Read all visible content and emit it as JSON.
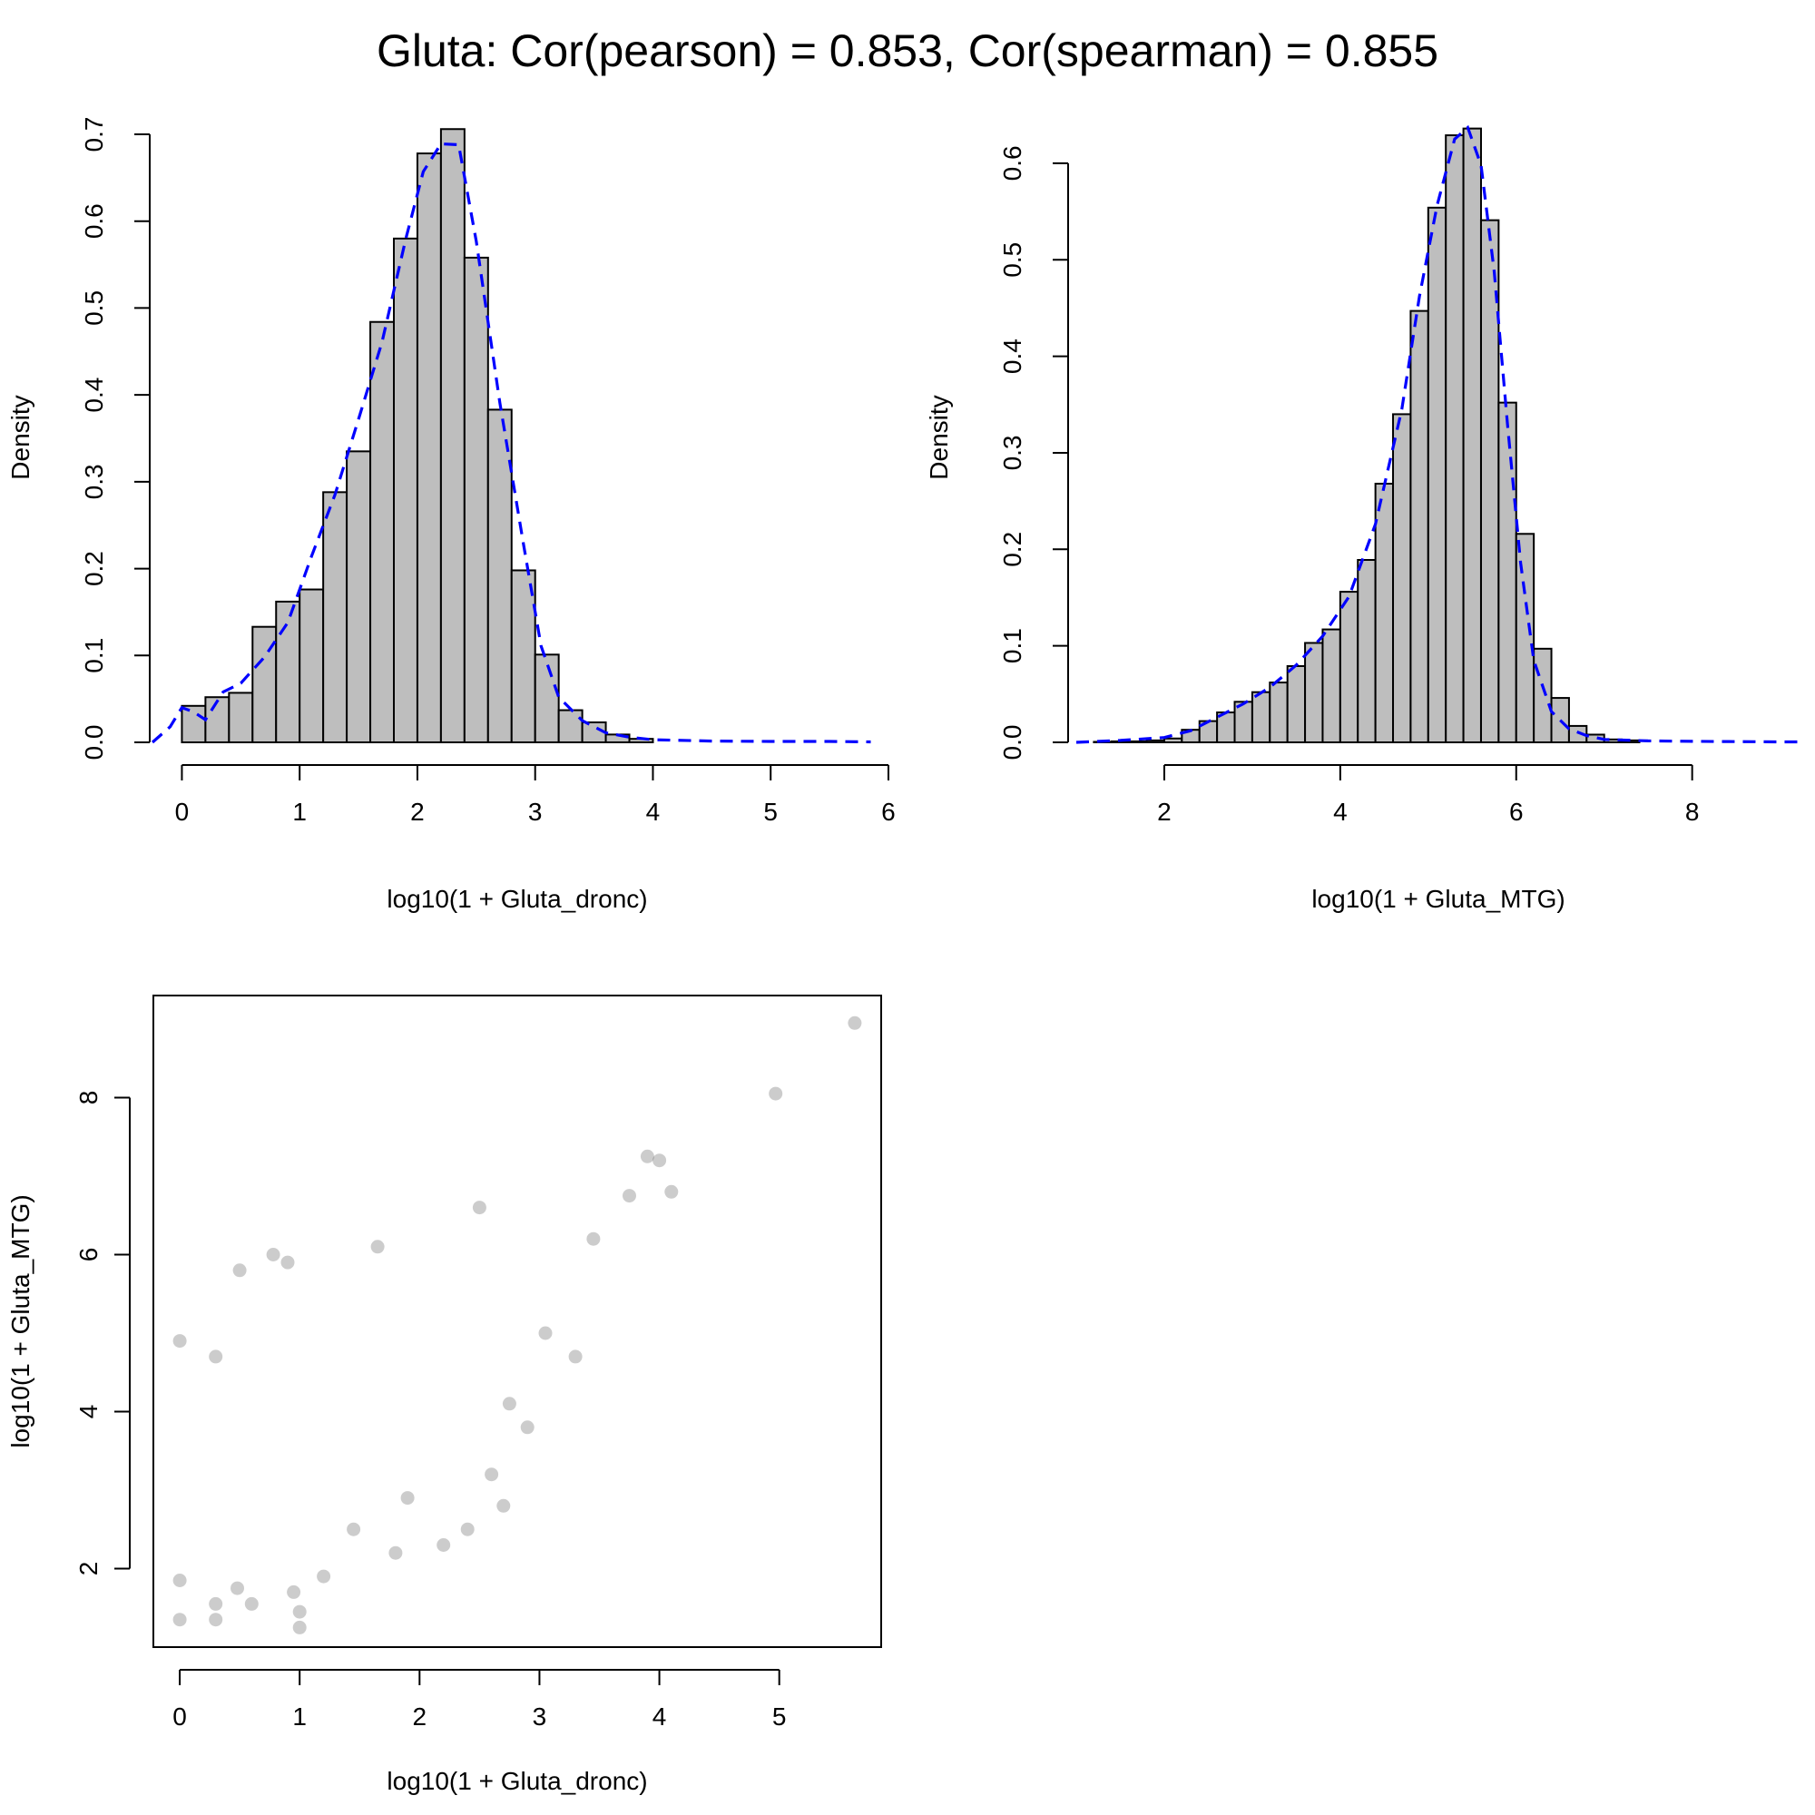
{
  "figure": {
    "title": "Gluta: Cor(pearson) = 0.853, Cor(spearman) = 0.855"
  },
  "chart_data": [
    {
      "type": "bar",
      "panel": "histogram-dronc",
      "xlabel": "log10(1 + Gluta_dronc)",
      "ylabel": "Density",
      "xlim": [
        -0.25,
        5.9
      ],
      "ylim": [
        0,
        0.7
      ],
      "x_ticks": [
        0,
        1,
        2,
        3,
        4,
        5,
        6
      ],
      "y_ticks": [
        0.0,
        0.1,
        0.2,
        0.3,
        0.4,
        0.5,
        0.6,
        0.7
      ],
      "bin_width": 0.2,
      "bins_start": [
        0.0,
        0.2,
        0.4,
        0.6,
        0.8,
        1.0,
        1.2,
        1.4,
        1.6,
        1.8,
        2.0,
        2.2,
        2.4,
        2.6,
        2.8,
        3.0,
        3.2,
        3.4,
        3.6,
        3.8
      ],
      "values": [
        0.042,
        0.052,
        0.057,
        0.133,
        0.162,
        0.176,
        0.288,
        0.335,
        0.484,
        0.58,
        0.678,
        0.706,
        0.558,
        0.383,
        0.198,
        0.101,
        0.037,
        0.023,
        0.009,
        0.004
      ],
      "density_curve": {
        "name": "density",
        "color": "#0000ff",
        "style": "dashed",
        "x": [
          -0.25,
          -0.1,
          0.0,
          0.1,
          0.2,
          0.35,
          0.5,
          0.7,
          0.9,
          1.1,
          1.3,
          1.5,
          1.7,
          1.9,
          2.05,
          2.2,
          2.35,
          2.5,
          2.7,
          2.9,
          3.05,
          3.2,
          3.4,
          3.6,
          3.8,
          4.0,
          4.5,
          5.0,
          5.5,
          5.85
        ],
        "y": [
          0.0,
          0.018,
          0.04,
          0.035,
          0.026,
          0.058,
          0.068,
          0.098,
          0.138,
          0.214,
          0.285,
          0.372,
          0.461,
          0.579,
          0.657,
          0.689,
          0.688,
          0.577,
          0.391,
          0.229,
          0.111,
          0.052,
          0.025,
          0.011,
          0.006,
          0.003,
          0.0015,
          0.001,
          0.001,
          0.0005
        ]
      }
    },
    {
      "type": "bar",
      "panel": "histogram-mtg",
      "xlabel": "log10(1 + Gluta_MTG)",
      "ylabel": "Density",
      "xlim": [
        1.0,
        9.2
      ],
      "ylim": [
        0,
        0.63
      ],
      "x_ticks": [
        2,
        4,
        6,
        8
      ],
      "y_ticks": [
        0.0,
        0.1,
        0.2,
        0.3,
        0.4,
        0.5,
        0.6
      ],
      "bin_width": 0.2,
      "bins_start": [
        1.2,
        1.4,
        1.6,
        1.8,
        2.0,
        2.2,
        2.4,
        2.6,
        2.8,
        3.0,
        3.2,
        3.4,
        3.6,
        3.8,
        4.0,
        4.2,
        4.4,
        4.6,
        4.8,
        5.0,
        5.2,
        5.4,
        5.6,
        5.8,
        6.0,
        6.2,
        6.4,
        6.6,
        6.8,
        7.0,
        7.2
      ],
      "values": [
        0.0005,
        0.001,
        0.001,
        0.002,
        0.004,
        0.013,
        0.022,
        0.031,
        0.042,
        0.052,
        0.062,
        0.079,
        0.103,
        0.117,
        0.156,
        0.189,
        0.268,
        0.34,
        0.447,
        0.554,
        0.629,
        0.636,
        0.541,
        0.352,
        0.216,
        0.097,
        0.046,
        0.017,
        0.008,
        0.003,
        0.002
      ],
      "density_curve": {
        "name": "density",
        "color": "#0000ff",
        "style": "dashed",
        "x": [
          1.0,
          1.5,
          2.0,
          2.3,
          2.6,
          2.9,
          3.2,
          3.5,
          3.8,
          4.1,
          4.4,
          4.7,
          4.9,
          5.1,
          5.3,
          5.45,
          5.6,
          5.75,
          5.9,
          6.05,
          6.2,
          6.4,
          6.6,
          6.8,
          7.0,
          7.5,
          8.0,
          9.0,
          9.2
        ],
        "y": [
          0.0,
          0.002,
          0.005,
          0.012,
          0.026,
          0.04,
          0.057,
          0.08,
          0.11,
          0.151,
          0.226,
          0.345,
          0.462,
          0.556,
          0.625,
          0.637,
          0.598,
          0.488,
          0.33,
          0.186,
          0.085,
          0.032,
          0.014,
          0.007,
          0.003,
          0.0015,
          0.001,
          0.0005,
          0.0005
        ]
      }
    },
    {
      "type": "scatter",
      "panel": "scatter",
      "xlabel": "log10(1 + Gluta_dronc)",
      "ylabel": "log10(1 + Gluta_MTG)",
      "xlim": [
        -0.22,
        5.85
      ],
      "ylim": [
        1.0,
        9.3
      ],
      "x_ticks": [
        0,
        1,
        2,
        3,
        4,
        5
      ],
      "y_ticks": [
        2,
        4,
        6,
        8
      ],
      "point_color": "rgba(0,0,0,0.2)",
      "points": [
        [
          0.0,
          4.9
        ],
        [
          0.0,
          1.35
        ],
        [
          0.0,
          1.85
        ],
        [
          0.3,
          1.35
        ],
        [
          0.3,
          1.55
        ],
        [
          0.3,
          4.7
        ],
        [
          0.48,
          1.75
        ],
        [
          0.6,
          1.55
        ],
        [
          0.95,
          1.7
        ],
        [
          1.0,
          1.25
        ],
        [
          1.0,
          1.45
        ],
        [
          0.5,
          5.8
        ],
        [
          0.78,
          6.0
        ],
        [
          0.9,
          5.9
        ],
        [
          1.2,
          1.9
        ],
        [
          1.65,
          6.1
        ],
        [
          2.5,
          6.6
        ],
        [
          4.97,
          8.05
        ],
        [
          5.63,
          8.95
        ],
        [
          3.9,
          7.25
        ],
        [
          4.0,
          7.2
        ],
        [
          3.3,
          4.7
        ],
        [
          2.9,
          3.8
        ],
        [
          2.4,
          2.5
        ],
        [
          2.6,
          3.2
        ],
        [
          2.2,
          2.3
        ],
        [
          1.8,
          2.2
        ],
        [
          1.9,
          2.9
        ],
        [
          3.05,
          5.0
        ],
        [
          2.75,
          4.1
        ],
        [
          4.1,
          6.8
        ],
        [
          3.75,
          6.75
        ],
        [
          3.45,
          6.2
        ],
        [
          1.45,
          2.5
        ],
        [
          2.7,
          2.8
        ]
      ]
    }
  ]
}
